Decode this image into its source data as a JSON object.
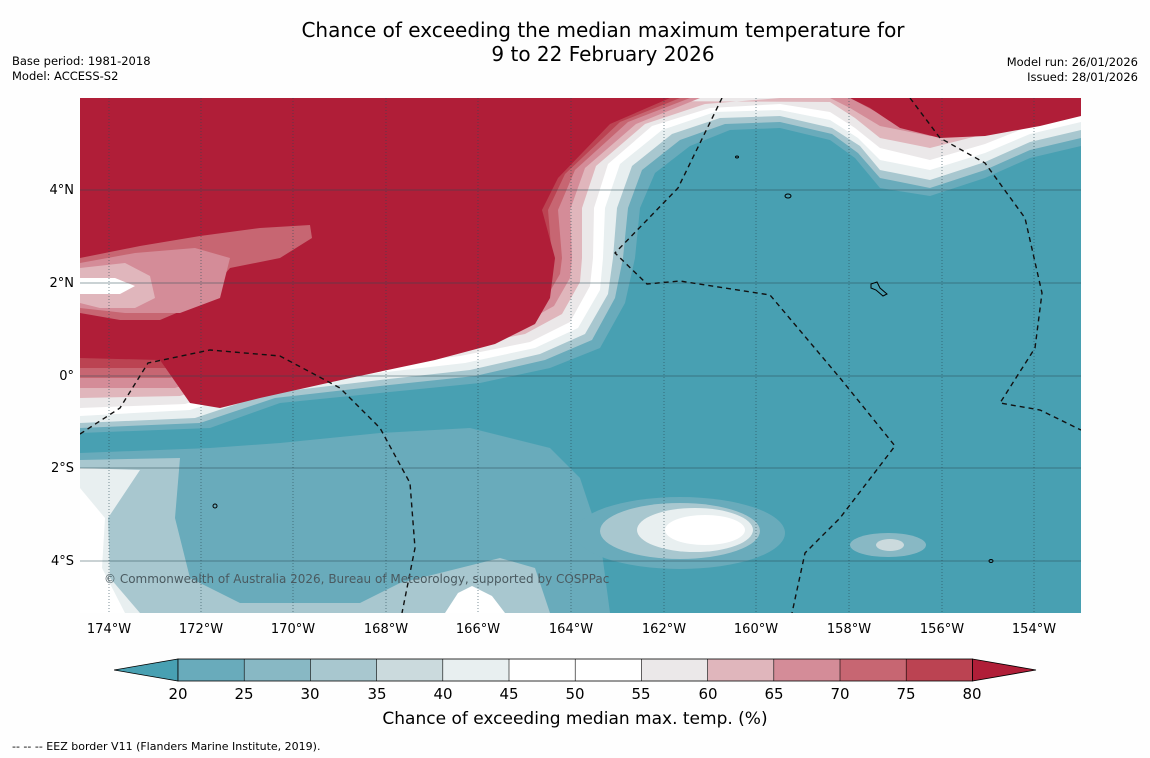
{
  "title": {
    "line1": "Chance of exceeding the median maximum temperature for",
    "line2": "9 to 22 February 2026"
  },
  "meta": {
    "base_period": "Base period: 1981-2018",
    "model": "Model: ACCESS-S2",
    "model_run": "Model run: 26/01/2026",
    "issued": "Issued: 28/01/2026"
  },
  "map": {
    "copyright": "© Commonwealth of Australia 2026, Bureau of Meteorology, supported by COSPPac",
    "lat_labels": [
      "4°N",
      "2°N",
      "0°",
      "2°S",
      "4°S"
    ],
    "lon_labels": [
      "174°W",
      "172°W",
      "170°W",
      "168°W",
      "166°W",
      "164°W",
      "162°W",
      "160°W",
      "158°W",
      "156°W",
      "154°W"
    ]
  },
  "colorbar": {
    "labels": [
      "20",
      "25",
      "30",
      "35",
      "40",
      "45",
      "50",
      "55",
      "60",
      "65",
      "70",
      "75",
      "80"
    ],
    "title": "Chance of exceeding median max. temp. (%)",
    "colors": {
      "below20": "#48a0b2",
      "c20_25": "#69abbb",
      "c25_30": "#88b8c4",
      "c30_35": "#a8c7cf",
      "c35_40": "#cbdadd",
      "c40_45": "#e8eff0",
      "c45_50": "#ffffff",
      "c50_55": "#ffffff",
      "c55_60": "#ebe8e9",
      "c60_65": "#e0b6bc",
      "c65_70": "#d48c98",
      "c70_75": "#c76672",
      "c75_80": "#bb4352",
      "above80": "#b01e38"
    }
  },
  "footnote": "--  --  -- EEZ border V11 (Flanders Marine Institute, 2019)."
}
